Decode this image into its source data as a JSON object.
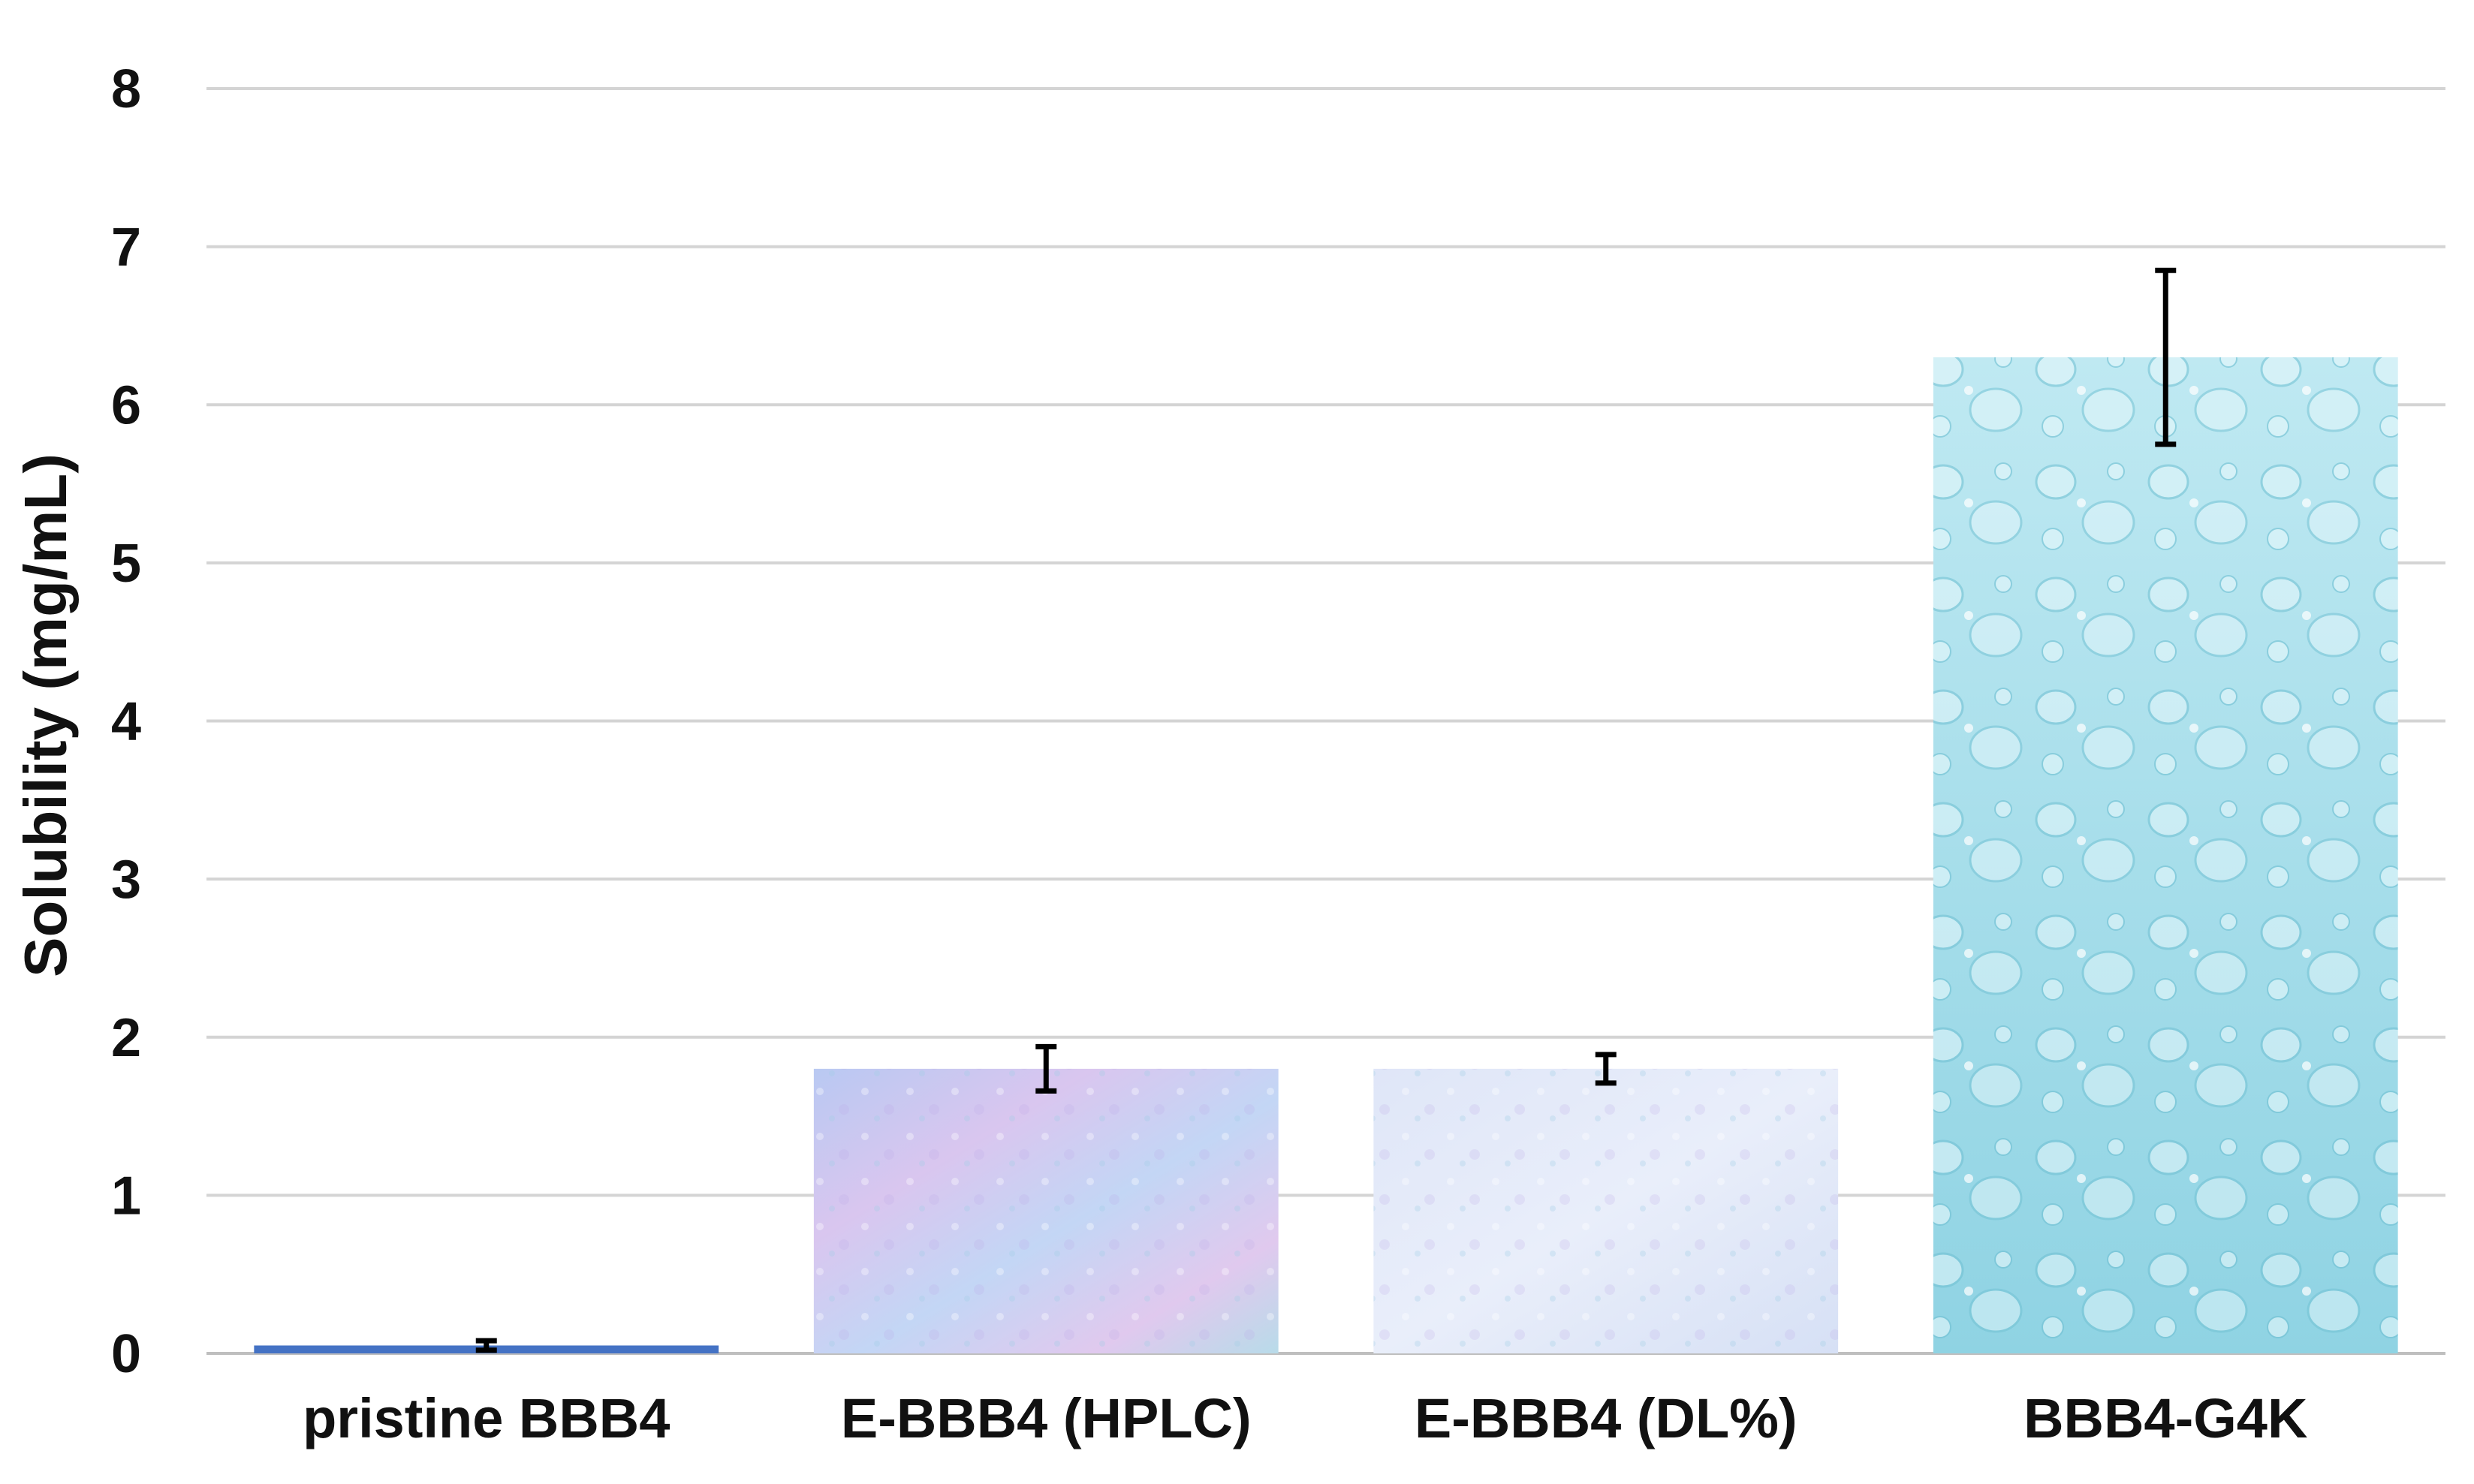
{
  "chart_data": {
    "type": "bar",
    "title": "",
    "xlabel": "",
    "ylabel": "Solubility (mg/mL)",
    "ylim": [
      0,
      8
    ],
    "yticks": [
      "0",
      "1",
      "2",
      "3",
      "4",
      "5",
      "6",
      "7",
      "8"
    ],
    "grid": true,
    "legend": "none",
    "categories": [
      "pristine BBB4",
      "E-BBB4 (HPLC)",
      "E-BBB4 (DL%)",
      "BBB4-G4K"
    ],
    "values": [
      0.05,
      1.8,
      1.8,
      6.3
    ],
    "errors": [
      0.03,
      0.14,
      0.09,
      0.55
    ],
    "colors": [
      "#4472c4",
      "#c4c8f0",
      "#dce4f7",
      "#9fdbe8"
    ],
    "fill_styles": [
      "solid",
      "marble-texture",
      "paper-texture",
      "water-droplet-texture"
    ]
  }
}
